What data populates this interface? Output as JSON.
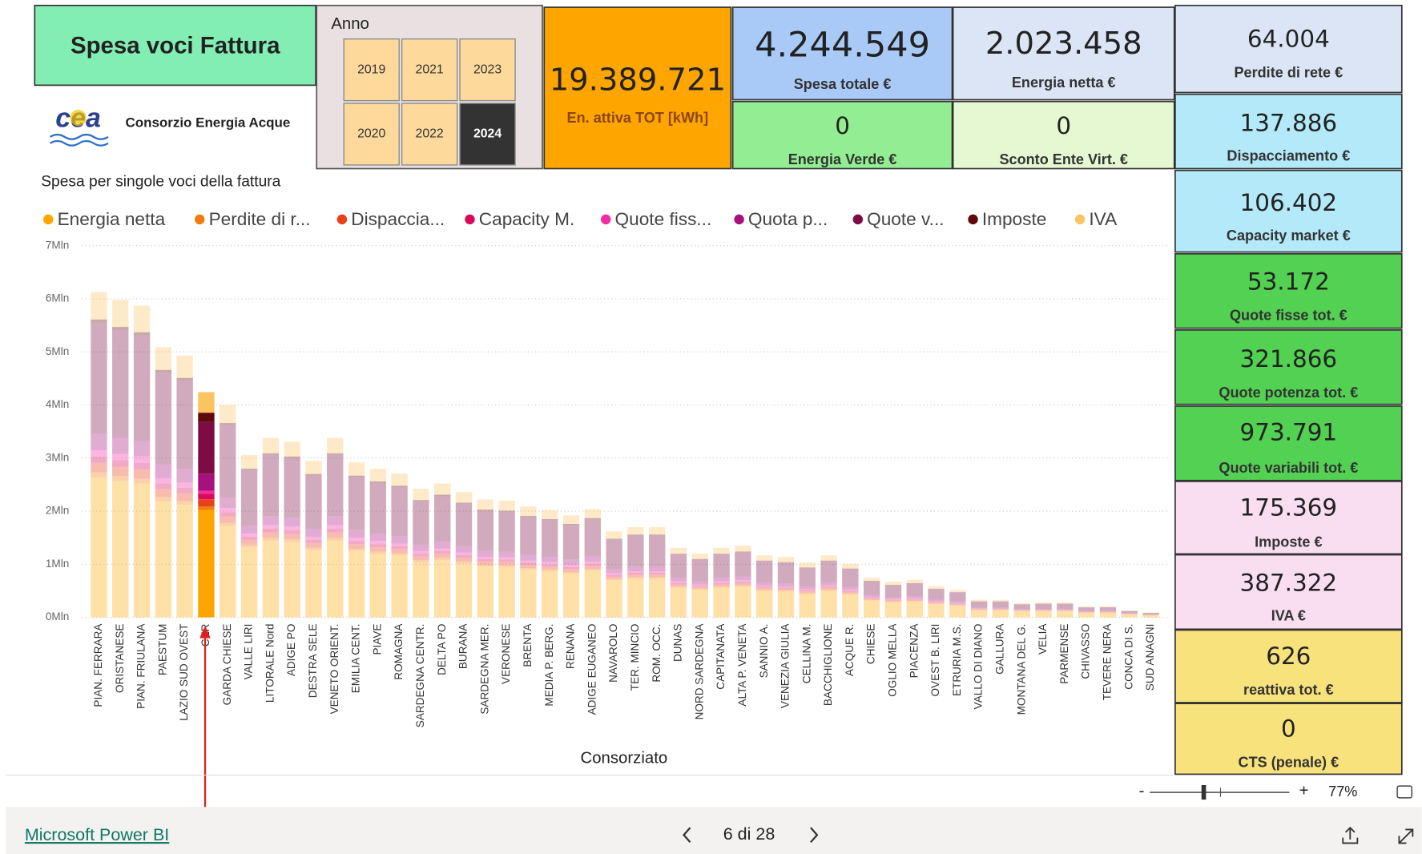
{
  "header": {
    "title": "Spesa voci Fattura",
    "logo_mark": "cea",
    "logo_text": "Consorzio Energia Acque"
  },
  "slicer": {
    "label": "Anno",
    "years": [
      "2019",
      "2021",
      "2023",
      "2020",
      "2022",
      "2024"
    ],
    "selected": "2024"
  },
  "cards": [
    {
      "value": "19.389.721",
      "label": "En. attiva TOT [kWh]"
    },
    {
      "value": "4.244.549",
      "label": "Spesa totale €"
    },
    {
      "value": "2.023.458",
      "label": "Energia netta €"
    },
    {
      "value": "0",
      "label": "Energia Verde €"
    },
    {
      "value": "0",
      "label": "Sconto Ente Virt. €"
    },
    {
      "value": "64.004",
      "label": "Perdite di rete €"
    },
    {
      "value": "137.886",
      "label": "Dispacciamento €"
    },
    {
      "value": "106.402",
      "label": "Capacity market €"
    },
    {
      "value": "53.172",
      "label": "Quote fisse tot. €"
    },
    {
      "value": "321.866",
      "label": "Quote potenza tot. €"
    },
    {
      "value": "973.791",
      "label": "Quote variabili tot. €"
    },
    {
      "value": "175.369",
      "label": "Imposte €"
    },
    {
      "value": "387.322",
      "label": "IVA €"
    },
    {
      "value": "626",
      "label": "reattiva tot. €"
    },
    {
      "value": "0",
      "label": "CTS (penale) €"
    }
  ],
  "chart_data": {
    "type": "stacked_bar",
    "title": "Spesa per singole voci della fattura",
    "x_label": "Consorziato",
    "highlight": "CER",
    "categories": [
      "PIAN. FERRARA",
      "ORISTANESE",
      "PIAN. FRIULANA",
      "PAESTUM",
      "LAZIO SUD OVEST",
      "CER",
      "GARDA CHIESE",
      "VALLE LIRI",
      "LITORALE Nord",
      "ADIGE PO",
      "DESTRA SELE",
      "VENETO ORIENT.",
      "EMILIA CENT.",
      "PIAVE",
      "ROMAGNA",
      "SARDEGNA CENTR.",
      "DELTA PO",
      "BURANA",
      "SARDEGNA MER.",
      "VERONESE",
      "BRENTA",
      "MEDIA P. BERG.",
      "RENANA",
      "ADIGE EUGANEO",
      "NAVAROLO",
      "TER. MINCIO",
      "ROM. OCC.",
      "DUNAS",
      "NORD SARDEGNA",
      "CAPITANATA",
      "ALTA P. VENETA",
      "SANNIO A.",
      "VENEZIA GIULIA",
      "CELLINA M.",
      "BACCHIGLIONE",
      "ACQUE R.",
      "CHIESE",
      "OGLIO MELLA",
      "PIACENZA",
      "OVEST B. LIRI",
      "ETRURIA M.S.",
      "VALLO DI DIANO",
      "GALLURA",
      "MONTANA DEL G.",
      "VELIA",
      "PARMENSE",
      "CHIVASSO",
      "TEVERE NERA",
      "CONCA DI S.",
      "SUD ANAGNI"
    ],
    "series": [
      {
        "name": "Energia netta",
        "color": "#FFA500",
        "values": [
          2.64,
          2.57,
          2.52,
          2.19,
          2.12,
          2.023,
          1.72,
          1.32,
          1.45,
          1.42,
          1.27,
          1.45,
          1.25,
          1.2,
          1.17,
          1.04,
          1.08,
          1.01,
          0.96,
          0.95,
          0.9,
          0.87,
          0.82,
          0.88,
          0.7,
          0.73,
          0.73,
          0.56,
          0.52,
          0.56,
          0.58,
          0.5,
          0.49,
          0.44,
          0.5,
          0.43,
          0.32,
          0.29,
          0.3,
          0.25,
          0.22,
          0.14,
          0.14,
          0.12,
          0.12,
          0.12,
          0.09,
          0.09,
          0.06,
          0.04
        ]
      },
      {
        "name": "Perdite di r...",
        "color": "#F07C0F",
        "values": [
          0.09,
          0.09,
          0.09,
          0.08,
          0.07,
          0.064,
          0.06,
          0.05,
          0.05,
          0.05,
          0.04,
          0.05,
          0.04,
          0.04,
          0.04,
          0.04,
          0.04,
          0.04,
          0.03,
          0.03,
          0.03,
          0.03,
          0.03,
          0.03,
          0.02,
          0.03,
          0.03,
          0.02,
          0.02,
          0.02,
          0.02,
          0.02,
          0.02,
          0.02,
          0.02,
          0.02,
          0.01,
          0.01,
          0.01,
          0.01,
          0.01,
          0.005,
          0.005,
          0.004,
          0.004,
          0.004,
          0.003,
          0.003,
          0.002,
          0.001
        ]
      },
      {
        "name": "Dispaccia...",
        "color": "#E8401A",
        "values": [
          0.18,
          0.18,
          0.18,
          0.15,
          0.15,
          0.138,
          0.12,
          0.09,
          0.1,
          0.1,
          0.09,
          0.1,
          0.09,
          0.08,
          0.08,
          0.07,
          0.08,
          0.07,
          0.07,
          0.07,
          0.06,
          0.06,
          0.06,
          0.06,
          0.05,
          0.05,
          0.05,
          0.04,
          0.04,
          0.04,
          0.04,
          0.04,
          0.03,
          0.03,
          0.04,
          0.03,
          0.02,
          0.02,
          0.02,
          0.02,
          0.02,
          0.01,
          0.01,
          0.01,
          0.01,
          0.01,
          0.006,
          0.007,
          0.004,
          0.003
        ]
      },
      {
        "name": "Capacity M.",
        "color": "#D90A5A",
        "values": [
          0.12,
          0.12,
          0.12,
          0.1,
          0.1,
          0.106,
          0.08,
          0.06,
          0.07,
          0.07,
          0.06,
          0.07,
          0.06,
          0.06,
          0.05,
          0.05,
          0.05,
          0.05,
          0.04,
          0.04,
          0.04,
          0.04,
          0.04,
          0.04,
          0.03,
          0.03,
          0.03,
          0.03,
          0.02,
          0.03,
          0.03,
          0.02,
          0.02,
          0.02,
          0.02,
          0.02,
          0.015,
          0.013,
          0.014,
          0.012,
          0.01,
          0.007,
          0.006,
          0.005,
          0.006,
          0.006,
          0.004,
          0.004,
          0.003,
          0.002
        ]
      },
      {
        "name": "Quote fiss...",
        "color": "#F52AA6",
        "values": [
          0.12,
          0.12,
          0.12,
          0.1,
          0.1,
          0.053,
          0.08,
          0.06,
          0.07,
          0.07,
          0.06,
          0.07,
          0.06,
          0.06,
          0.05,
          0.05,
          0.05,
          0.05,
          0.04,
          0.04,
          0.04,
          0.04,
          0.04,
          0.04,
          0.03,
          0.03,
          0.03,
          0.03,
          0.02,
          0.03,
          0.03,
          0.02,
          0.02,
          0.02,
          0.02,
          0.02,
          0.015,
          0.013,
          0.014,
          0.012,
          0.01,
          0.007,
          0.006,
          0.005,
          0.006,
          0.006,
          0.004,
          0.004,
          0.003,
          0.002
        ]
      },
      {
        "name": "Quota p...",
        "color": "#A8107E",
        "values": [
          0.31,
          0.3,
          0.29,
          0.26,
          0.25,
          0.322,
          0.2,
          0.15,
          0.17,
          0.17,
          0.15,
          0.17,
          0.15,
          0.14,
          0.14,
          0.12,
          0.13,
          0.12,
          0.11,
          0.11,
          0.11,
          0.1,
          0.1,
          0.1,
          0.08,
          0.09,
          0.09,
          0.07,
          0.06,
          0.07,
          0.07,
          0.06,
          0.06,
          0.05,
          0.06,
          0.05,
          0.04,
          0.03,
          0.04,
          0.03,
          0.03,
          0.02,
          0.02,
          0.01,
          0.01,
          0.01,
          0.01,
          0.01,
          0.007,
          0.005
        ]
      },
      {
        "name": "Quote v...",
        "color": "#7D0C44",
        "values": [
          2.09,
          2.03,
          1.99,
          1.73,
          1.67,
          0.974,
          1.36,
          1.04,
          1.15,
          1.12,
          1.0,
          1.15,
          0.99,
          0.95,
          0.92,
          0.82,
          0.85,
          0.8,
          0.76,
          0.75,
          0.71,
          0.69,
          0.65,
          0.7,
          0.55,
          0.58,
          0.58,
          0.44,
          0.41,
          0.44,
          0.46,
          0.4,
          0.39,
          0.35,
          0.4,
          0.34,
          0.26,
          0.23,
          0.24,
          0.2,
          0.17,
          0.11,
          0.11,
          0.09,
          0.1,
          0.1,
          0.07,
          0.07,
          0.04,
          0.03
        ]
      },
      {
        "name": "Imposte",
        "color": "#5E0A0A",
        "values": [
          0.06,
          0.06,
          0.06,
          0.05,
          0.05,
          0.175,
          0.04,
          0.03,
          0.03,
          0.03,
          0.03,
          0.03,
          0.03,
          0.03,
          0.03,
          0.02,
          0.03,
          0.02,
          0.02,
          0.02,
          0.02,
          0.02,
          0.02,
          0.02,
          0.02,
          0.02,
          0.02,
          0.01,
          0.01,
          0.01,
          0.01,
          0.01,
          0.01,
          0.01,
          0.01,
          0.01,
          0.008,
          0.007,
          0.007,
          0.006,
          0.005,
          0.003,
          0.003,
          0.003,
          0.003,
          0.003,
          0.002,
          0.002,
          0.001,
          0.001
        ]
      },
      {
        "name": "IVA",
        "color": "#FCC460",
        "values": [
          0.52,
          0.51,
          0.5,
          0.43,
          0.42,
          0.387,
          0.34,
          0.26,
          0.29,
          0.28,
          0.25,
          0.29,
          0.25,
          0.24,
          0.23,
          0.21,
          0.21,
          0.2,
          0.19,
          0.19,
          0.18,
          0.17,
          0.16,
          0.17,
          0.14,
          0.14,
          0.14,
          0.11,
          0.1,
          0.11,
          0.11,
          0.1,
          0.1,
          0.09,
          0.1,
          0.09,
          0.06,
          0.06,
          0.06,
          0.05,
          0.04,
          0.03,
          0.03,
          0.02,
          0.02,
          0.02,
          0.02,
          0.02,
          0.01,
          0.01
        ]
      }
    ],
    "ylim": [
      0,
      7
    ],
    "yticks": [
      {
        "value": 0,
        "label": "0Mln"
      },
      {
        "value": 1,
        "label": "1Mln"
      },
      {
        "value": 2,
        "label": "2Mln"
      },
      {
        "value": 3,
        "label": "3Mln"
      },
      {
        "value": 4,
        "label": "4Mln"
      },
      {
        "value": 5,
        "label": "5Mln"
      },
      {
        "value": 6,
        "label": "6Mln"
      },
      {
        "value": 7,
        "label": "7Mln"
      }
    ],
    "grid": true
  },
  "footer": {
    "link": "Microsoft Power BI",
    "page": "6 di 28",
    "zoom_minus": "-",
    "zoom_plus": "+",
    "zoom": "77%"
  }
}
